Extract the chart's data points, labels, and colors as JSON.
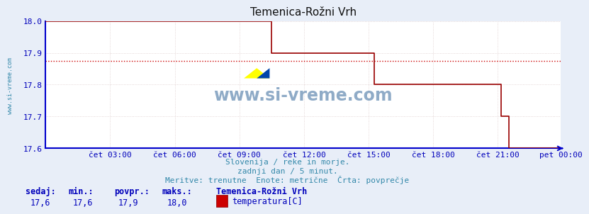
{
  "title": "Temenica-Rožni Vrh",
  "bg_color": "#e8eef8",
  "plot_bg_color": "#ffffff",
  "line_color": "#990000",
  "avg_line_color": "#cc0000",
  "axis_color": "#0000cc",
  "grid_color": "#ddcccc",
  "text_color": "#3388aa",
  "label_color": "#0000bb",
  "ylim": [
    17.6,
    18.0
  ],
  "yticks": [
    17.6,
    17.7,
    17.8,
    17.9,
    18.0
  ],
  "avg_value": 17.875,
  "subtitle1": "Slovenija / reke in morje.",
  "subtitle2": "zadnji dan / 5 minut.",
  "subtitle3": "Meritve: trenutne  Enote: metrične  Črta: povprečje",
  "footer_labels": [
    "sedaj:",
    "min.:",
    "povpr.:",
    "maks.:"
  ],
  "footer_values": [
    "17,6",
    "17,6",
    "17,9",
    "18,0"
  ],
  "footer_station": "Temenica-Rožni Vrh",
  "footer_param": "temperatura[C]",
  "x_tick_labels": [
    "čet 03:00",
    "čet 06:00",
    "čet 09:00",
    "čet 12:00",
    "čet 15:00",
    "čet 18:00",
    "čet 21:00",
    "pet 00:00"
  ],
  "x_tick_positions": [
    36,
    72,
    108,
    144,
    180,
    216,
    252,
    287
  ],
  "total_points": 288,
  "watermark": "www.si-vreme.com",
  "left_label": "www.si-vreme.com"
}
